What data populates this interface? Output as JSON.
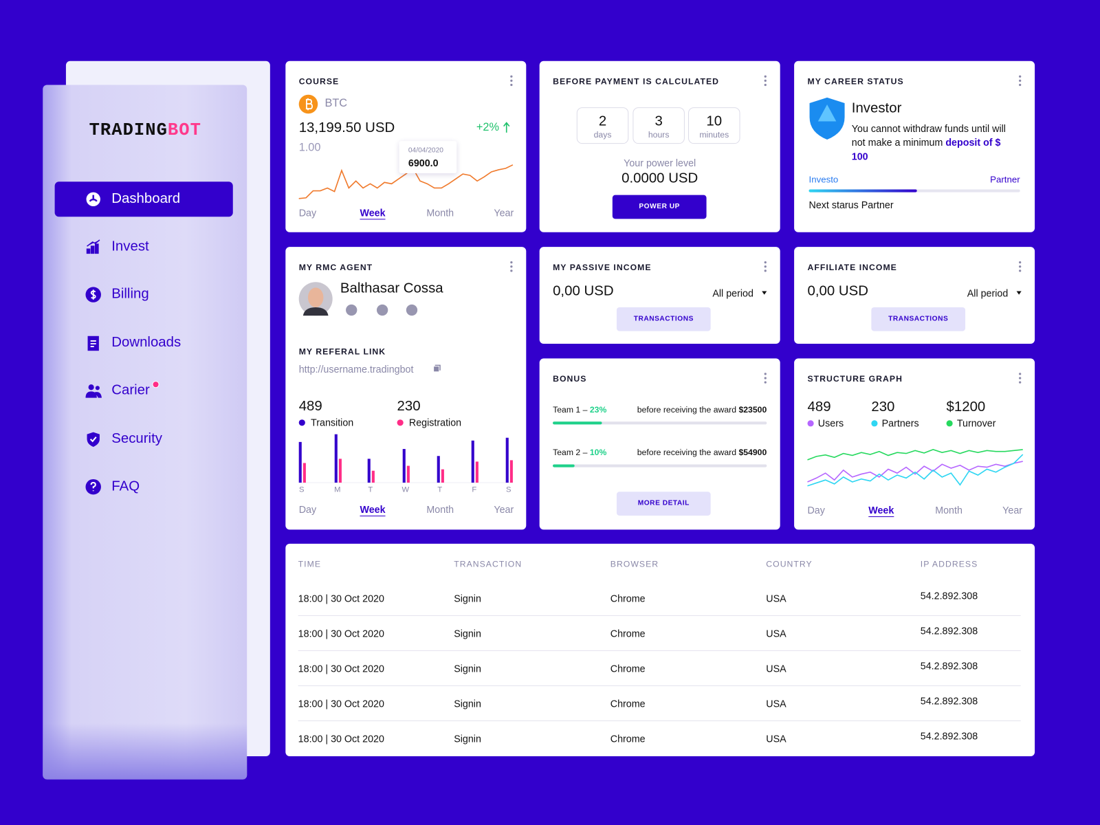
{
  "sidebar": {
    "logo": {
      "first": "TRADING",
      "second": "BOT"
    },
    "menu": [
      {
        "label": "Dashboard",
        "active": true
      },
      {
        "label": "Invest"
      },
      {
        "label": "Billing"
      },
      {
        "label": "Downloads"
      },
      {
        "label": "Carier",
        "badge": true
      },
      {
        "label": "Security"
      },
      {
        "label": "FAQ"
      }
    ]
  },
  "course": {
    "title": "COURSE",
    "coin": "BTC",
    "price": "13,199.50 USD",
    "change": "+2%",
    "rate": "1.00",
    "tooltip": {
      "date": "04/04/2020",
      "value": "6900.0"
    },
    "chart": {
      "type": "line",
      "color": "#f07a2c",
      "ylim": [
        0,
        60
      ],
      "values": [
        7,
        8,
        18,
        18,
        22,
        17,
        47,
        22,
        32,
        22,
        28,
        22,
        30,
        28,
        35,
        42,
        50,
        32,
        28,
        22,
        22,
        28,
        35,
        42,
        40,
        32,
        38,
        45,
        48,
        50,
        55
      ]
    },
    "periods": [
      {
        "label": "Day"
      },
      {
        "label": "Week",
        "selected": true
      },
      {
        "label": "Month"
      },
      {
        "label": "Year"
      }
    ]
  },
  "payment": {
    "title": "BEFORE PAYMENT IS CALCULATED",
    "timer": [
      {
        "value": "2",
        "unit": "days"
      },
      {
        "value": "3",
        "unit": "hours"
      },
      {
        "value": "10",
        "unit": "minutes"
      }
    ],
    "power_label": "Your power level",
    "power_value": "0.0000 USD",
    "button": "POWER UP"
  },
  "career": {
    "title": "MY CAREER STATUS",
    "status": "Investor",
    "text": "You cannot withdraw funds until will not make a minimum ",
    "link": "deposit",
    "amount": "of $ 100",
    "from": "Investo",
    "to": "Partner",
    "progress": 51,
    "next": "Next starus Partner"
  },
  "agent": {
    "title": "MY RMC AGENT",
    "name": "Balthasar Cossa",
    "referral_title": "MY REFERAL LINK",
    "referral_link": "http://username.tradingbot",
    "stats": [
      {
        "value": "489",
        "label": "Transition",
        "color": "#3300cc"
      },
      {
        "value": "230",
        "label": "Registration",
        "color": "#ff2d87"
      }
    ],
    "chart": {
      "type": "bar",
      "ylim": [
        0,
        70
      ],
      "categories": [
        "S",
        "M",
        "T",
        "W",
        "T",
        "F",
        "S"
      ],
      "series": [
        {
          "name": "Transition",
          "color": "#3300cc",
          "values": [
            58,
            69,
            34,
            48,
            38,
            60,
            64
          ]
        },
        {
          "name": "Registration",
          "color": "#ff2d87",
          "values": [
            28,
            34,
            17,
            24,
            19,
            30,
            32
          ]
        }
      ]
    },
    "periods": [
      {
        "label": "Day"
      },
      {
        "label": "Week",
        "selected": true
      },
      {
        "label": "Month"
      },
      {
        "label": "Year"
      }
    ]
  },
  "passive": {
    "title": "MY PASSIVE INCOME",
    "amount": "0,00 USD",
    "period": "All period",
    "button": "TRANSACTIONS"
  },
  "affiliate": {
    "title": "AFFILIATE INCOME",
    "amount": "0,00 USD",
    "period": "All period",
    "button": "TRANSACTIONS"
  },
  "bonus": {
    "title": "BONUS",
    "teams": [
      {
        "label": "Team 1 – ",
        "percent": {
          "value": 23,
          "label": "23%"
        },
        "note": "before receiving the award ",
        "award": "$23500"
      },
      {
        "label": "Team 2 – ",
        "percent": {
          "value": 10,
          "label": "10%"
        },
        "note": "before receiving the award ",
        "award": "$54900"
      }
    ],
    "button": "MORE DETAIL"
  },
  "structure": {
    "title": "STRUCTURE GRAPH",
    "stats": [
      {
        "value": "489",
        "label": "Users",
        "color": "#b566ff"
      },
      {
        "value": "230",
        "label": "Partners",
        "color": "#2fd6f2"
      },
      {
        "value": "$1200",
        "label": "Turnover",
        "color": "#26d95e"
      }
    ],
    "chart": {
      "type": "line",
      "ylim": [
        0,
        100
      ],
      "series": [
        {
          "name": "Turnover",
          "color": "#26d95e",
          "values": [
            65,
            72,
            75,
            70,
            78,
            74,
            80,
            76,
            82,
            74,
            80,
            78,
            84,
            79,
            86,
            80,
            84,
            78,
            84,
            80,
            84,
            82,
            82,
            84,
            86
          ]
        },
        {
          "name": "Users",
          "color": "#b566ff",
          "values": [
            20,
            28,
            38,
            24,
            44,
            30,
            36,
            40,
            30,
            46,
            38,
            50,
            36,
            52,
            42,
            56,
            48,
            54,
            44,
            52,
            50,
            56,
            52,
            58,
            62
          ]
        },
        {
          "name": "Partners",
          "color": "#2fd6f2",
          "values": [
            12,
            18,
            24,
            16,
            30,
            20,
            26,
            22,
            36,
            24,
            34,
            28,
            40,
            26,
            44,
            30,
            38,
            14,
            42,
            34,
            46,
            40,
            50,
            58,
            76
          ]
        }
      ]
    },
    "periods": [
      {
        "label": "Day"
      },
      {
        "label": "Week",
        "selected": true
      },
      {
        "label": "Month"
      },
      {
        "label": "Year"
      }
    ]
  },
  "table": {
    "headers": [
      "TIME",
      "TRANSACTION",
      "BROWSER",
      "COUNTRY",
      "IP ADDRESS"
    ],
    "rows": [
      [
        "18:00 | 30 Oct 2020",
        "Signin",
        "Chrome",
        "USA",
        "54.2.892.308"
      ],
      [
        "18:00 | 30 Oct 2020",
        "Signin",
        "Chrome",
        "USA",
        "54.2.892.308"
      ],
      [
        "18:00 | 30 Oct 2020",
        "Signin",
        "Chrome",
        "USA",
        "54.2.892.308"
      ],
      [
        "18:00 | 30 Oct 2020",
        "Signin",
        "Chrome",
        "USA",
        "54.2.892.308"
      ],
      [
        "18:00 | 30 Oct 2020",
        "Signin",
        "Chrome",
        "USA",
        "54.2.892.308"
      ]
    ]
  }
}
